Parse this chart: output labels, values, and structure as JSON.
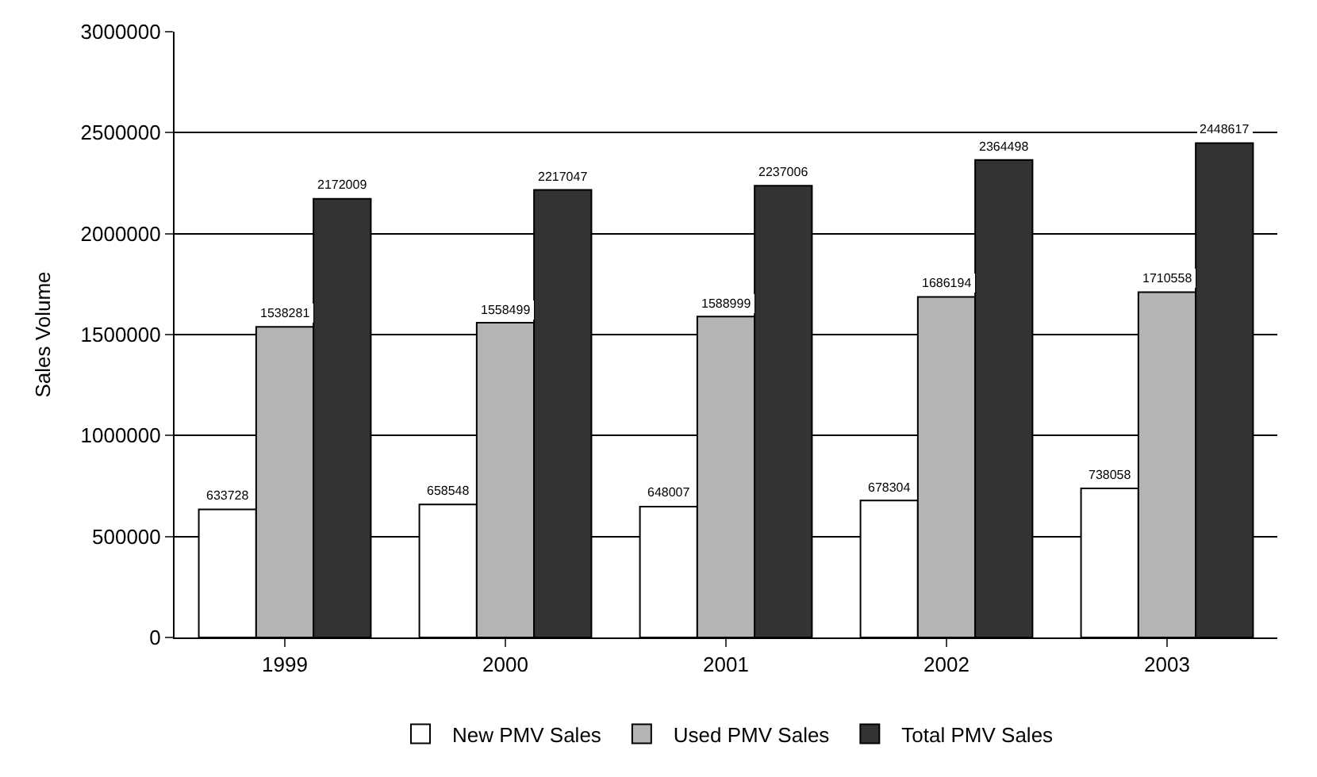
{
  "chart_data": {
    "type": "bar",
    "ylabel": "Sales Volume",
    "categories": [
      "1999",
      "2000",
      "2001",
      "2002",
      "2003"
    ],
    "series": [
      {
        "name": "New PMV Sales",
        "color": "#ffffff",
        "values": [
          633728,
          658548,
          648007,
          678304,
          738058
        ]
      },
      {
        "name": "Used PMV Sales",
        "color": "#b4b4b4",
        "values": [
          1538281,
          1558499,
          1588999,
          1686194,
          1710558
        ]
      },
      {
        "name": "Total PMV Sales",
        "color": "#333333",
        "values": [
          2172009,
          2217047,
          2237006,
          2364498,
          2448617
        ]
      }
    ],
    "ylim": [
      0,
      3000000
    ],
    "yticks": [
      0,
      500000,
      1000000,
      1500000,
      2000000,
      2500000,
      3000000
    ],
    "grid": "y",
    "legend": "bottom",
    "data_labels": true
  }
}
